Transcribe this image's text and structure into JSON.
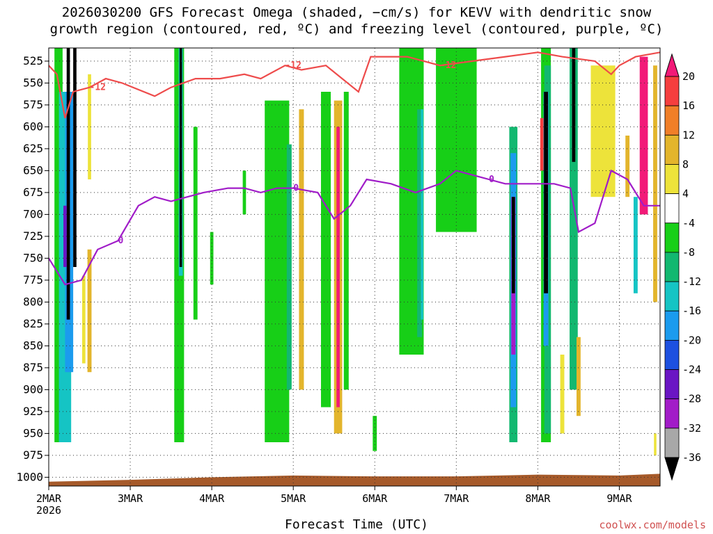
{
  "title_line1": "2026030200 GFS Forecast Omega (shaded, −cm/s) for KEVV with dendritic snow",
  "title_line2": "growth region (contoured, red, ºC) and freezing level (contoured, purple, ºC)",
  "credit": "coolwx.com/models",
  "chart_data": {
    "type": "heatmap",
    "xlabel": "Forecast Time (UTC)",
    "ylabel": "",
    "x_ticks": [
      "2MAR",
      "3MAR",
      "4MAR",
      "5MAR",
      "6MAR",
      "7MAR",
      "8MAR",
      "9MAR"
    ],
    "x_tick_days": [
      0,
      1,
      2,
      3,
      4,
      5,
      6,
      7
    ],
    "x_year_label": "2026",
    "xlim_days": [
      0,
      7.5
    ],
    "y_ticks": [
      525,
      550,
      575,
      600,
      625,
      650,
      675,
      700,
      725,
      750,
      775,
      800,
      825,
      850,
      875,
      900,
      925,
      950,
      975,
      1000
    ],
    "ylim_hPa": [
      510,
      1010
    ],
    "y_inverted": true,
    "grid": true,
    "colorbar": {
      "ticks": [
        20,
        16,
        12,
        8,
        4,
        -4,
        -8,
        -12,
        -16,
        -20,
        -24,
        -28,
        -32,
        -36
      ],
      "colors": [
        "#f21a78",
        "#f53e3e",
        "#f07f28",
        "#e3b52c",
        "#ede33a",
        "#ffffff",
        "#17cf17",
        "#12b870",
        "#15c4c4",
        "#1b9bee",
        "#1d50e0",
        "#6a15c4",
        "#a21cc8",
        "#a8a8a8",
        "#000000"
      ]
    },
    "omega_regions": [
      {
        "day": 0.12,
        "p1": 510,
        "p2": 960,
        "w": 0.1,
        "c": "#17cf17"
      },
      {
        "day": 0.2,
        "p1": 560,
        "p2": 960,
        "w": 0.15,
        "c": "#15c4c4"
      },
      {
        "day": 0.25,
        "p1": 560,
        "p2": 880,
        "w": 0.1,
        "c": "#1b9bee"
      },
      {
        "day": 0.24,
        "p1": 510,
        "p2": 820,
        "w": 0.04,
        "c": "#000000"
      },
      {
        "day": 0.32,
        "p1": 510,
        "p2": 760,
        "w": 0.04,
        "c": "#000000"
      },
      {
        "day": 0.2,
        "p1": 690,
        "p2": 760,
        "w": 0.04,
        "c": "#6a15c4"
      },
      {
        "day": 0.43,
        "p1": 770,
        "p2": 870,
        "w": 0.04,
        "c": "#ede33a"
      },
      {
        "day": 0.5,
        "p1": 540,
        "p2": 660,
        "w": 0.04,
        "c": "#ede33a"
      },
      {
        "day": 0.5,
        "p1": 740,
        "p2": 880,
        "w": 0.05,
        "c": "#e3b52c"
      },
      {
        "day": 1.6,
        "p1": 510,
        "p2": 960,
        "w": 0.12,
        "c": "#17cf17"
      },
      {
        "day": 1.62,
        "p1": 510,
        "p2": 770,
        "w": 0.05,
        "c": "#15c4c4"
      },
      {
        "day": 1.62,
        "p1": 510,
        "p2": 760,
        "w": 0.03,
        "c": "#000000"
      },
      {
        "day": 1.8,
        "p1": 600,
        "p2": 820,
        "w": 0.05,
        "c": "#17cf17"
      },
      {
        "day": 2.0,
        "p1": 720,
        "p2": 780,
        "w": 0.04,
        "c": "#17cf17"
      },
      {
        "day": 2.4,
        "p1": 650,
        "p2": 700,
        "w": 0.04,
        "c": "#17cf17"
      },
      {
        "day": 2.8,
        "p1": 570,
        "p2": 960,
        "w": 0.3,
        "c": "#17cf17"
      },
      {
        "day": 2.95,
        "p1": 620,
        "p2": 900,
        "w": 0.06,
        "c": "#12b870"
      },
      {
        "day": 3.1,
        "p1": 580,
        "p2": 900,
        "w": 0.06,
        "c": "#e3b52c"
      },
      {
        "day": 3.4,
        "p1": 560,
        "p2": 920,
        "w": 0.12,
        "c": "#17cf17"
      },
      {
        "day": 3.55,
        "p1": 570,
        "p2": 950,
        "w": 0.1,
        "c": "#e3b52c"
      },
      {
        "day": 3.55,
        "p1": 600,
        "p2": 920,
        "w": 0.04,
        "c": "#f21a78"
      },
      {
        "day": 3.65,
        "p1": 560,
        "p2": 900,
        "w": 0.06,
        "c": "#17cf17"
      },
      {
        "day": 4.0,
        "p1": 930,
        "p2": 970,
        "w": 0.05,
        "c": "#17cf17"
      },
      {
        "day": 4.45,
        "p1": 510,
        "p2": 860,
        "w": 0.3,
        "c": "#17cf17"
      },
      {
        "day": 4.55,
        "p1": 580,
        "p2": 840,
        "w": 0.06,
        "c": "#12b870"
      },
      {
        "day": 4.58,
        "p1": 580,
        "p2": 820,
        "w": 0.03,
        "c": "#15c4c4"
      },
      {
        "day": 5.0,
        "p1": 510,
        "p2": 720,
        "w": 0.5,
        "c": "#17cf17"
      },
      {
        "day": 5.7,
        "p1": 600,
        "p2": 960,
        "w": 0.1,
        "c": "#12b870"
      },
      {
        "day": 5.7,
        "p1": 630,
        "p2": 920,
        "w": 0.07,
        "c": "#1b9bee"
      },
      {
        "day": 5.7,
        "p1": 680,
        "p2": 860,
        "w": 0.05,
        "c": "#a21cc8"
      },
      {
        "day": 5.7,
        "p1": 680,
        "p2": 790,
        "w": 0.04,
        "c": "#000000"
      },
      {
        "day": 6.1,
        "p1": 510,
        "p2": 960,
        "w": 0.12,
        "c": "#17cf17"
      },
      {
        "day": 6.12,
        "p1": 530,
        "p2": 950,
        "w": 0.08,
        "c": "#12b870"
      },
      {
        "day": 6.1,
        "p1": 560,
        "p2": 850,
        "w": 0.06,
        "c": "#1b9bee"
      },
      {
        "day": 6.1,
        "p1": 560,
        "p2": 790,
        "w": 0.05,
        "c": "#000000"
      },
      {
        "day": 6.44,
        "p1": 510,
        "p2": 900,
        "w": 0.1,
        "c": "#12b870"
      },
      {
        "day": 6.44,
        "p1": 510,
        "p2": 640,
        "w": 0.04,
        "c": "#000000"
      },
      {
        "day": 6.05,
        "p1": 590,
        "p2": 650,
        "w": 0.04,
        "c": "#f53e3e"
      },
      {
        "day": 6.3,
        "p1": 860,
        "p2": 950,
        "w": 0.05,
        "c": "#ede33a"
      },
      {
        "day": 6.5,
        "p1": 840,
        "p2": 930,
        "w": 0.05,
        "c": "#e3b52c"
      },
      {
        "day": 6.8,
        "p1": 530,
        "p2": 680,
        "w": 0.3,
        "c": "#ede33a"
      },
      {
        "day": 7.1,
        "p1": 610,
        "p2": 680,
        "w": 0.05,
        "c": "#e3b52c"
      },
      {
        "day": 7.3,
        "p1": 520,
        "p2": 700,
        "w": 0.1,
        "c": "#f21a78"
      },
      {
        "day": 7.2,
        "p1": 680,
        "p2": 790,
        "w": 0.05,
        "c": "#15c4c4"
      },
      {
        "day": 7.44,
        "p1": 530,
        "p2": 800,
        "w": 0.05,
        "c": "#e3b52c"
      },
      {
        "day": 7.44,
        "p1": 950,
        "p2": 975,
        "w": 0.03,
        "c": "#ede33a"
      }
    ],
    "dgz_contour": {
      "label": "-12",
      "points": [
        [
          0,
          530
        ],
        [
          0.1,
          540
        ],
        [
          0.2,
          590
        ],
        [
          0.3,
          560
        ],
        [
          0.5,
          555
        ],
        [
          0.7,
          545
        ],
        [
          0.9,
          550
        ],
        [
          1.3,
          565
        ],
        [
          1.5,
          555
        ],
        [
          1.8,
          545
        ],
        [
          2.1,
          545
        ],
        [
          2.4,
          540
        ],
        [
          2.6,
          545
        ],
        [
          2.9,
          530
        ],
        [
          3.1,
          535
        ],
        [
          3.4,
          530
        ],
        [
          3.6,
          545
        ],
        [
          3.8,
          560
        ],
        [
          3.95,
          520
        ],
        [
          4.4,
          520
        ],
        [
          4.8,
          530
        ],
        [
          5.2,
          525
        ],
        [
          5.6,
          520
        ],
        [
          6.0,
          515
        ],
        [
          6.3,
          520
        ],
        [
          6.7,
          525
        ],
        [
          6.9,
          540
        ],
        [
          7.0,
          530
        ],
        [
          7.2,
          520
        ],
        [
          7.5,
          515
        ]
      ]
    },
    "freezing_contour": {
      "label": "0",
      "points": [
        [
          0,
          750
        ],
        [
          0.2,
          780
        ],
        [
          0.4,
          775
        ],
        [
          0.6,
          740
        ],
        [
          0.85,
          730
        ],
        [
          1.1,
          690
        ],
        [
          1.3,
          680
        ],
        [
          1.5,
          685
        ],
        [
          1.7,
          680
        ],
        [
          1.9,
          675
        ],
        [
          2.2,
          670
        ],
        [
          2.4,
          670
        ],
        [
          2.6,
          675
        ],
        [
          2.8,
          670
        ],
        [
          3.0,
          670
        ],
        [
          3.3,
          675
        ],
        [
          3.5,
          705
        ],
        [
          3.7,
          690
        ],
        [
          3.9,
          660
        ],
        [
          4.2,
          665
        ],
        [
          4.5,
          675
        ],
        [
          4.8,
          665
        ],
        [
          5.0,
          650
        ],
        [
          5.4,
          660
        ],
        [
          5.6,
          665
        ],
        [
          6.0,
          665
        ],
        [
          6.2,
          665
        ],
        [
          6.4,
          670
        ],
        [
          6.5,
          720
        ],
        [
          6.7,
          710
        ],
        [
          6.9,
          650
        ],
        [
          7.1,
          660
        ],
        [
          7.3,
          690
        ],
        [
          7.5,
          690
        ]
      ]
    },
    "ground": {
      "color": "#a65a2a",
      "points": [
        [
          0,
          1005
        ],
        [
          1,
          1003
        ],
        [
          2,
          1000
        ],
        [
          3,
          998
        ],
        [
          4,
          999
        ],
        [
          5,
          999
        ],
        [
          6,
          997
        ],
        [
          7,
          998
        ],
        [
          7.5,
          996
        ]
      ]
    },
    "series": [
      {
        "name": "-12",
        "color": "#ee4b4b"
      },
      {
        "name": "0",
        "color": "#a01cc8"
      }
    ]
  }
}
